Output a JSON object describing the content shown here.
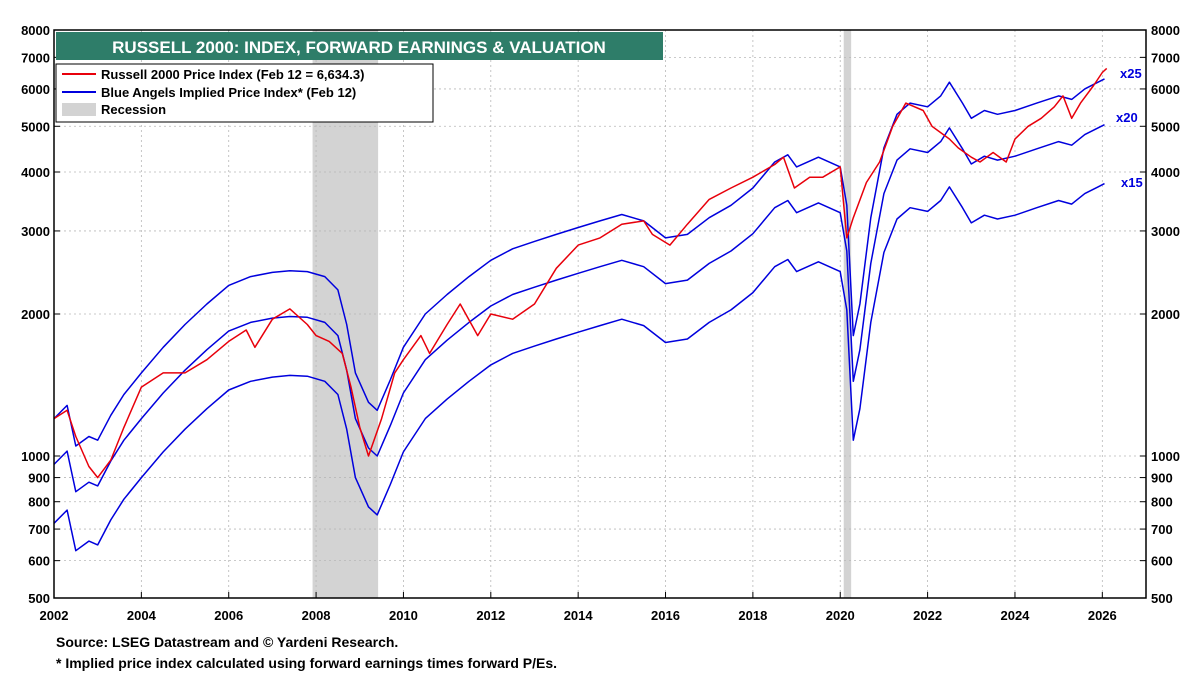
{
  "chart_data": {
    "type": "line",
    "title": "RUSSELL 2000: INDEX, FORWARD EARNINGS & VALUATION",
    "y_scale": "log",
    "ylim": [
      500,
      8000
    ],
    "xlim": [
      2002.0,
      2027.0
    ],
    "y_ticks": [
      500,
      600,
      700,
      800,
      900,
      1000,
      2000,
      3000,
      4000,
      5000,
      6000,
      7000,
      8000
    ],
    "x_ticks": [
      "2002",
      "2004",
      "2006",
      "2008",
      "2010",
      "2012",
      "2014",
      "2016",
      "2018",
      "2020",
      "2022",
      "2024",
      "2026"
    ],
    "grid": true,
    "legend_position": "top-left",
    "legend": [
      {
        "label": "Russell 2000 Price Index (Feb 12 = 6,634.3)",
        "color": "#e8000b",
        "kind": "line"
      },
      {
        "label": "Blue Angels Implied Price Index* (Feb 12)",
        "color": "#0000dd",
        "kind": "line"
      },
      {
        "label": "Recession",
        "color": "#d3d3d3",
        "kind": "box"
      }
    ],
    "recessions": [
      [
        2007.92,
        2009.42
      ],
      [
        2020.08,
        2020.25
      ]
    ],
    "series": [
      {
        "name": "x25",
        "color": "#0000dd",
        "x": [
          2002.0,
          2002.3,
          2002.5,
          2002.8,
          2003.0,
          2003.3,
          2003.6,
          2004.0,
          2004.5,
          2005.0,
          2005.5,
          2006.0,
          2006.5,
          2007.0,
          2007.4,
          2007.8,
          2008.2,
          2008.5,
          2008.7,
          2008.9,
          2009.2,
          2009.4,
          2009.7,
          2010.0,
          2010.5,
          2011.0,
          2011.5,
          2012.0,
          2012.5,
          2013.0,
          2013.5,
          2014.0,
          2014.5,
          2015.0,
          2015.5,
          2016.0,
          2016.5,
          2017.0,
          2017.5,
          2018.0,
          2018.5,
          2018.8,
          2019.0,
          2019.5,
          2020.0,
          2020.15,
          2020.3,
          2020.45,
          2020.7,
          2021.0,
          2021.3,
          2021.6,
          2022.0,
          2022.3,
          2022.5,
          2022.8,
          2023.0,
          2023.3,
          2023.6,
          2024.0,
          2024.5,
          2025.0,
          2025.3,
          2025.6,
          2025.9,
          2026.05
        ],
        "y": [
          1200,
          1280,
          1050,
          1100,
          1080,
          1220,
          1350,
          1500,
          1700,
          1900,
          2100,
          2300,
          2400,
          2450,
          2470,
          2460,
          2400,
          2250,
          1900,
          1500,
          1300,
          1250,
          1450,
          1700,
          2000,
          2200,
          2400,
          2600,
          2750,
          2850,
          2950,
          3050,
          3150,
          3250,
          3150,
          2900,
          2950,
          3200,
          3400,
          3700,
          4200,
          4350,
          4100,
          4300,
          4100,
          3400,
          1800,
          2100,
          3200,
          4500,
          5300,
          5600,
          5500,
          5800,
          6200,
          5600,
          5200,
          5400,
          5300,
          5400,
          5600,
          5800,
          5700,
          6000,
          6200,
          6300
        ]
      },
      {
        "name": "x20",
        "color": "#0000dd",
        "x": [
          2002.0,
          2002.3,
          2002.5,
          2002.8,
          2003.0,
          2003.3,
          2003.6,
          2004.0,
          2004.5,
          2005.0,
          2005.5,
          2006.0,
          2006.5,
          2007.0,
          2007.4,
          2007.8,
          2008.2,
          2008.5,
          2008.7,
          2008.9,
          2009.2,
          2009.4,
          2009.7,
          2010.0,
          2010.5,
          2011.0,
          2011.5,
          2012.0,
          2012.5,
          2013.0,
          2013.5,
          2014.0,
          2014.5,
          2015.0,
          2015.5,
          2016.0,
          2016.5,
          2017.0,
          2017.5,
          2018.0,
          2018.5,
          2018.8,
          2019.0,
          2019.5,
          2020.0,
          2020.15,
          2020.3,
          2020.45,
          2020.7,
          2021.0,
          2021.3,
          2021.6,
          2022.0,
          2022.3,
          2022.5,
          2022.8,
          2023.0,
          2023.3,
          2023.6,
          2024.0,
          2024.5,
          2025.0,
          2025.3,
          2025.6,
          2025.9,
          2026.05
        ],
        "y": [
          960,
          1024,
          840,
          880,
          864,
          976,
          1080,
          1200,
          1360,
          1520,
          1680,
          1840,
          1920,
          1960,
          1976,
          1968,
          1920,
          1800,
          1520,
          1200,
          1040,
          1000,
          1160,
          1360,
          1600,
          1760,
          1920,
          2080,
          2200,
          2280,
          2360,
          2440,
          2520,
          2600,
          2520,
          2320,
          2360,
          2560,
          2720,
          2960,
          3360,
          3480,
          3280,
          3440,
          3280,
          2720,
          1440,
          1680,
          2560,
          3600,
          4240,
          4480,
          4400,
          4640,
          4960,
          4480,
          4160,
          4320,
          4240,
          4320,
          4480,
          4640,
          4560,
          4800,
          4960,
          5040
        ]
      },
      {
        "name": "x15",
        "color": "#0000dd",
        "x": [
          2002.0,
          2002.3,
          2002.5,
          2002.8,
          2003.0,
          2003.3,
          2003.6,
          2004.0,
          2004.5,
          2005.0,
          2005.5,
          2006.0,
          2006.5,
          2007.0,
          2007.4,
          2007.8,
          2008.2,
          2008.5,
          2008.7,
          2008.9,
          2009.2,
          2009.4,
          2009.7,
          2010.0,
          2010.5,
          2011.0,
          2011.5,
          2012.0,
          2012.5,
          2013.0,
          2013.5,
          2014.0,
          2014.5,
          2015.0,
          2015.5,
          2016.0,
          2016.5,
          2017.0,
          2017.5,
          2018.0,
          2018.5,
          2018.8,
          2019.0,
          2019.5,
          2020.0,
          2020.15,
          2020.3,
          2020.45,
          2020.7,
          2021.0,
          2021.3,
          2021.6,
          2022.0,
          2022.3,
          2022.5,
          2022.8,
          2023.0,
          2023.3,
          2023.6,
          2024.0,
          2024.5,
          2025.0,
          2025.3,
          2025.6,
          2025.9,
          2026.05
        ],
        "y": [
          720,
          768,
          630,
          660,
          648,
          732,
          810,
          900,
          1020,
          1140,
          1260,
          1380,
          1440,
          1470,
          1482,
          1476,
          1440,
          1350,
          1140,
          900,
          780,
          750,
          870,
          1020,
          1200,
          1320,
          1440,
          1560,
          1650,
          1710,
          1770,
          1830,
          1890,
          1950,
          1890,
          1740,
          1770,
          1920,
          2040,
          2220,
          2520,
          2610,
          2460,
          2580,
          2460,
          2040,
          1080,
          1260,
          1920,
          2700,
          3180,
          3360,
          3300,
          3480,
          3720,
          3360,
          3120,
          3240,
          3180,
          3240,
          3360,
          3480,
          3420,
          3600,
          3720,
          3780
        ]
      },
      {
        "name": "Russell 2000 Price Index",
        "color": "#e8000b",
        "x": [
          2002.0,
          2002.3,
          2002.5,
          2002.8,
          2003.0,
          2003.3,
          2003.6,
          2004.0,
          2004.5,
          2005.0,
          2005.5,
          2006.0,
          2006.4,
          2006.6,
          2007.0,
          2007.4,
          2007.8,
          2008.0,
          2008.3,
          2008.6,
          2008.8,
          2009.0,
          2009.2,
          2009.5,
          2009.8,
          2010.0,
          2010.4,
          2010.6,
          2011.0,
          2011.3,
          2011.7,
          2012.0,
          2012.5,
          2013.0,
          2013.5,
          2014.0,
          2014.5,
          2015.0,
          2015.5,
          2015.7,
          2016.1,
          2016.5,
          2017.0,
          2017.5,
          2018.0,
          2018.5,
          2018.7,
          2018.95,
          2019.3,
          2019.6,
          2020.0,
          2020.15,
          2020.3,
          2020.6,
          2020.9,
          2021.2,
          2021.5,
          2021.9,
          2022.1,
          2022.5,
          2022.7,
          2023.0,
          2023.2,
          2023.5,
          2023.8,
          2024.0,
          2024.3,
          2024.6,
          2024.9,
          2025.1,
          2025.3,
          2025.5,
          2025.8,
          2026.0,
          2026.1
        ],
        "y": [
          1200,
          1250,
          1100,
          950,
          900,
          980,
          1150,
          1400,
          1500,
          1500,
          1600,
          1750,
          1850,
          1700,
          1950,
          2050,
          1900,
          1800,
          1750,
          1650,
          1400,
          1150,
          1000,
          1200,
          1500,
          1600,
          1800,
          1650,
          1900,
          2100,
          1800,
          2000,
          1950,
          2100,
          2500,
          2800,
          2900,
          3100,
          3150,
          2950,
          2800,
          3100,
          3500,
          3700,
          3900,
          4150,
          4300,
          3700,
          3900,
          3900,
          4100,
          2900,
          3200,
          3800,
          4200,
          5000,
          5600,
          5400,
          5000,
          4700,
          4500,
          4300,
          4200,
          4400,
          4200,
          4700,
          5000,
          5200,
          5500,
          5800,
          5200,
          5600,
          6100,
          6500,
          6634
        ]
      }
    ],
    "series_end_labels": [
      "x25",
      "x20",
      "x15"
    ],
    "source": "Source: LSEG Datastream and © Yardeni Research.",
    "note": "* Implied price index calculated using forward earnings times forward P/Es."
  }
}
